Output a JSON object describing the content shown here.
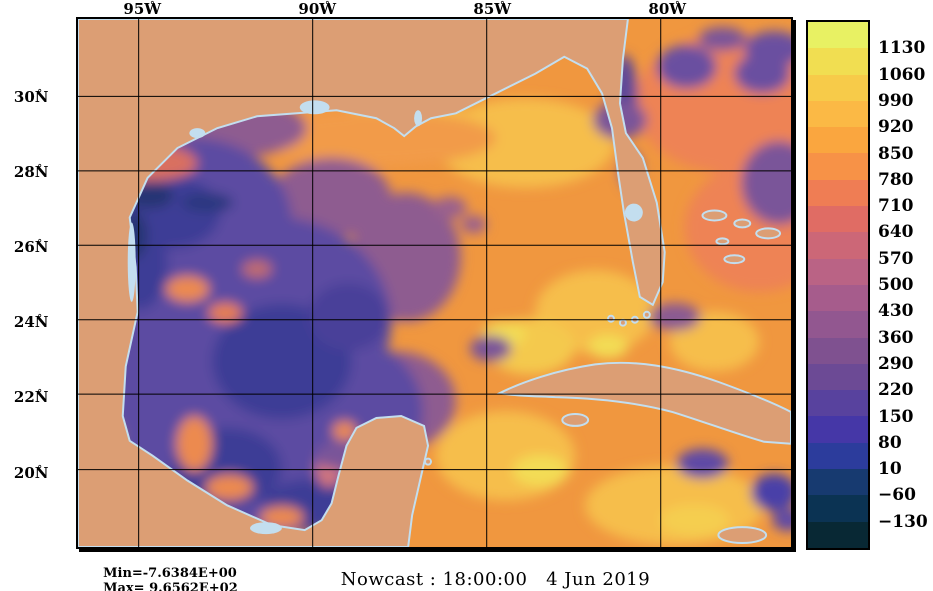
{
  "palette": {
    "background": "#FFFFFF",
    "land": "#DC9E74",
    "lake": "#C3DEEF",
    "ocean_base": "#F0973F",
    "frame": "#000000",
    "text": "#000000"
  },
  "axes": {
    "degree_symbol": "°",
    "top_labels": [
      "95W",
      "90W",
      "85W",
      "80W"
    ],
    "left_labels": [
      "30N",
      "28N",
      "26N",
      "24N",
      "22N",
      "20N"
    ]
  },
  "colorbar": {
    "tick_labels": [
      "1130",
      "1060",
      "990",
      "920",
      "850",
      "780",
      "710",
      "640",
      "570",
      "500",
      "430",
      "360",
      "290",
      "220",
      "150",
      "80",
      "10",
      "−60",
      "−130"
    ],
    "segment_colors": [
      "#E8F163",
      "#F1DE51",
      "#F7CB49",
      "#FBB945",
      "#FAA63F",
      "#F79247",
      "#EF7D54",
      "#E06C64",
      "#CC6777",
      "#BA6385",
      "#A65C8C",
      "#925790",
      "#7F5190",
      "#6C4A95",
      "#58429E",
      "#4537A7",
      "#2C3C9C",
      "#173A70",
      "#0B3353",
      "#082834"
    ]
  },
  "stats": {
    "min": "Min=-7.6384E+00",
    "max": "Max= 9.6562E+02"
  },
  "caption": "Nowcast : 18:00:00   4 Jun 2019",
  "chart_data": {
    "type": "heatmap",
    "title": "Nowcast : 18:00:00   4 Jun 2019",
    "nowcast_time": "18:00:00",
    "nowcast_date": "4 Jun 2019",
    "region_depicted": "Gulf of Mexico, Caribbean and western North Atlantic",
    "x_tick_labels": [
      "95W",
      "90W",
      "85W",
      "80W"
    ],
    "y_tick_labels": [
      "30N",
      "28N",
      "26N",
      "24N",
      "22N",
      "20N"
    ],
    "lon_range_deg_west": [
      96.8,
      76.2
    ],
    "lat_range_deg_north": [
      18.1,
      32.2
    ],
    "grid": true,
    "colorbar_tick_values": [
      1130,
      1060,
      990,
      920,
      850,
      780,
      710,
      640,
      570,
      500,
      430,
      360,
      290,
      220,
      150,
      80,
      10,
      -60,
      -130
    ],
    "data_min": -7.6384,
    "data_max": 965.62,
    "min_label": "Min=-7.6384E+00",
    "max_label": "Max= 9.6562E+02",
    "legend_position": "right colorbar",
    "features": [
      {
        "area": "western and southwestern Gulf of Mexico (large eddy field)",
        "approx_values": "10 to 430 (blue/purple shades)"
      },
      {
        "area": "eastern Gulf, Yucatan Channel, Caribbean and Atlantic",
        "approx_values": "640 to 990 (orange/yellow shades)"
      },
      {
        "area": "eddies off the US southeast coast, off NE Florida, and south of eastern Cuba",
        "approx_values": "150 to 570 (purple blobs)"
      },
      {
        "area": "local maxima in central-eastern Gulf and Caribbean",
        "approx_values": "920 to 1060 (bright yellow spots)"
      }
    ]
  }
}
